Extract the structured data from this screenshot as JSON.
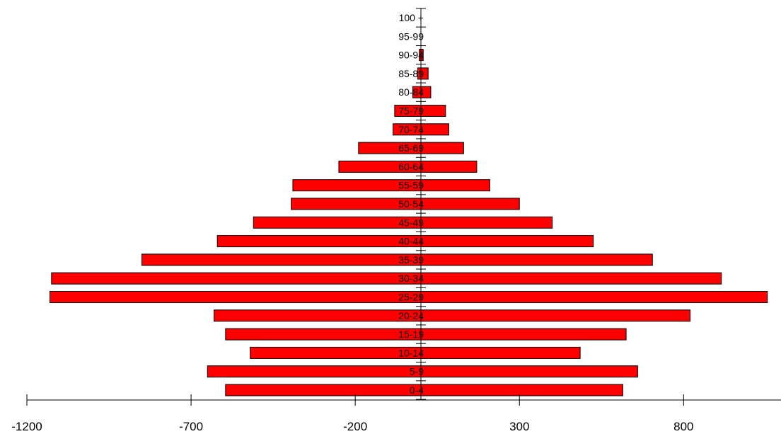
{
  "chart_data": {
    "type": "bar",
    "orientation": "horizontal",
    "style": "population-pyramid",
    "title": "",
    "xlabel": "",
    "ylabel": "",
    "xlim": [
      -1200,
      1200
    ],
    "xticks": [
      -1200,
      -700,
      -200,
      300,
      800
    ],
    "xtick_labels": [
      "-1200",
      "-700",
      "-200",
      "300",
      "800"
    ],
    "bar_color": "#ff0000",
    "bar_edge_color": "#000000",
    "categories": [
      "0-4",
      "5-9",
      "10-14",
      "15-19",
      "20-24",
      "25-29",
      "30-34",
      "35-39",
      "40-44",
      "45-49",
      "50-54",
      "55-59",
      "60-64",
      "65-69",
      "70-74",
      "75-79",
      "80-84",
      "85-89",
      "90-94",
      "95-99",
      "100 +"
    ],
    "series": [
      {
        "side": "left",
        "values": [
          -595,
          -650,
          -520,
          -595,
          -630,
          -1130,
          -1125,
          -850,
          -620,
          -510,
          -395,
          -390,
          -250,
          -190,
          -85,
          -80,
          -25,
          -10,
          -5,
          0,
          0
        ]
      },
      {
        "side": "right",
        "values": [
          615,
          660,
          485,
          625,
          820,
          1055,
          915,
          705,
          525,
          400,
          300,
          210,
          170,
          130,
          85,
          75,
          30,
          22,
          7,
          0,
          0
        ]
      }
    ]
  }
}
